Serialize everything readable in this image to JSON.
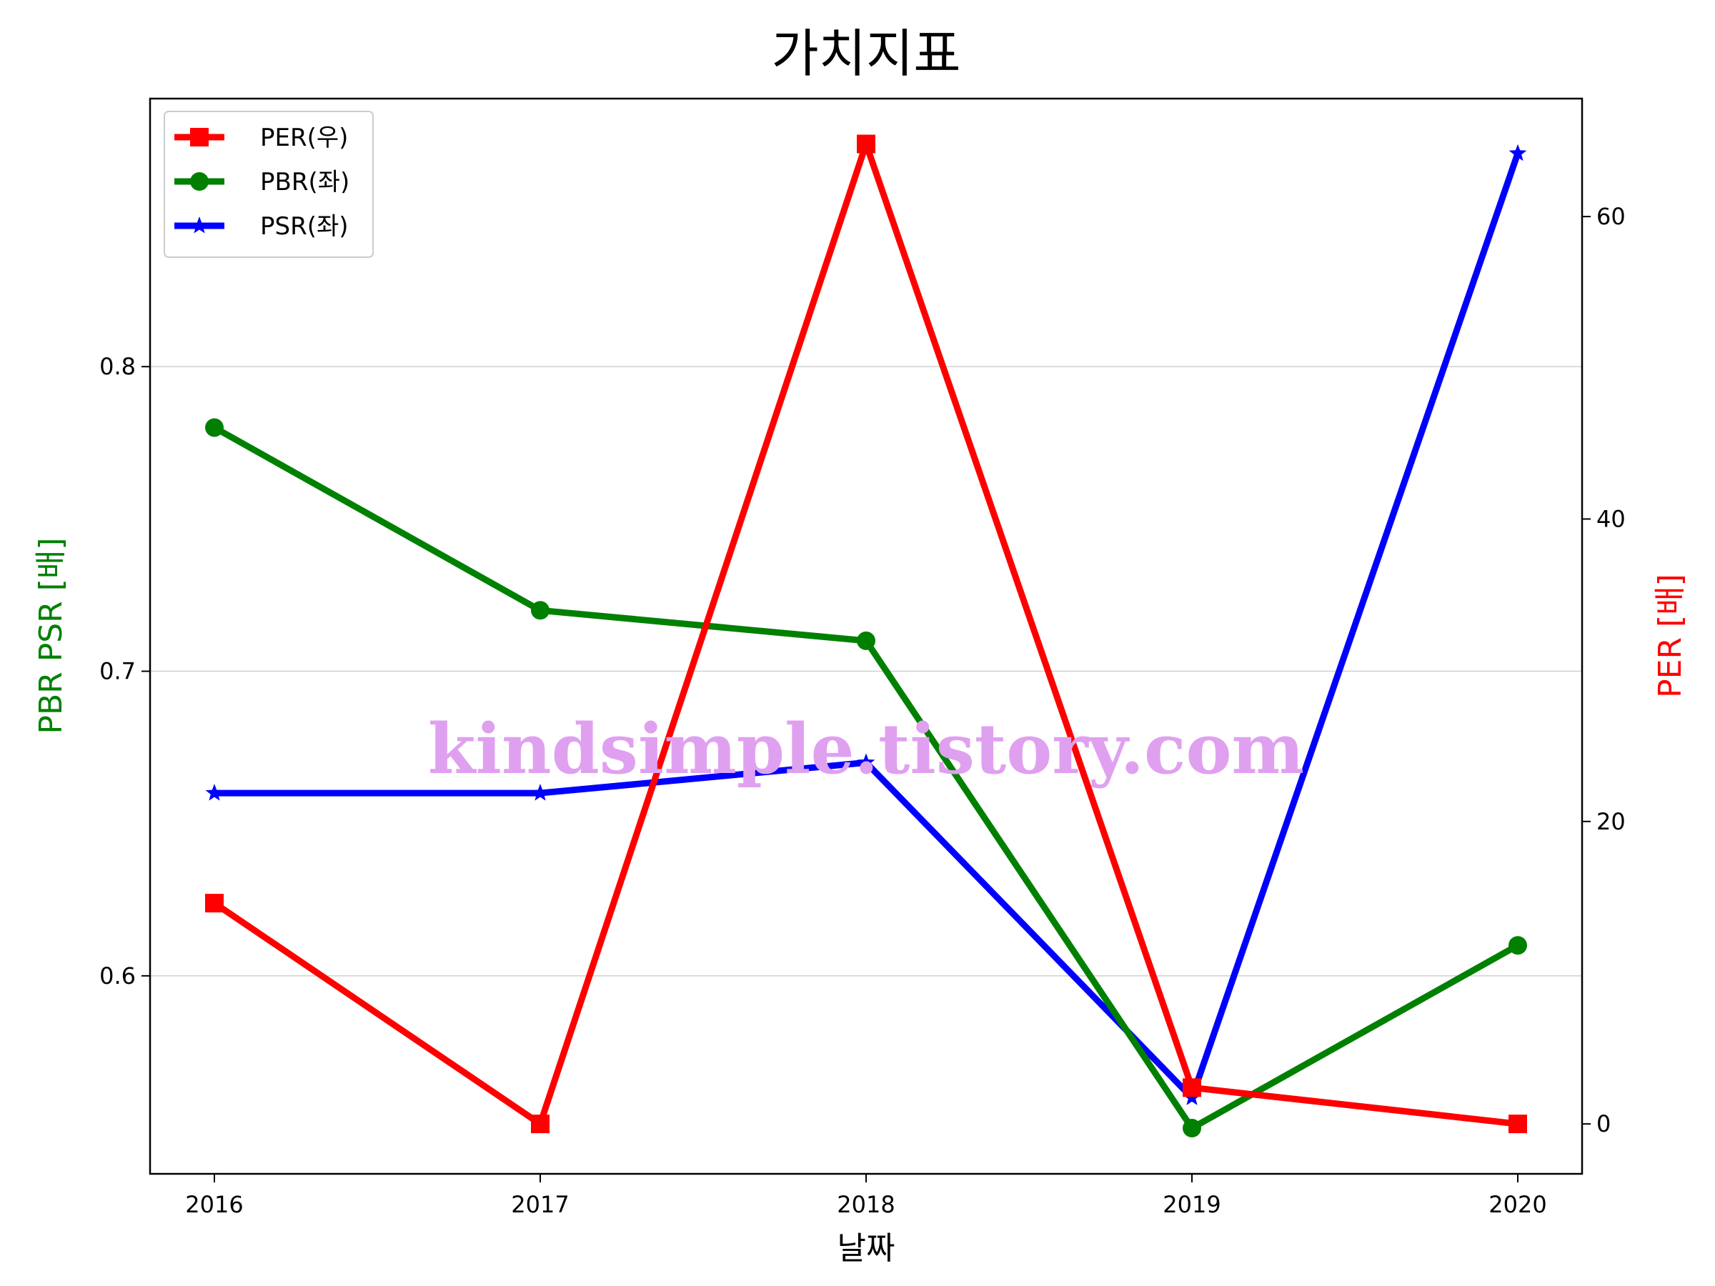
{
  "chart_data": {
    "type": "line",
    "title": "가치지표",
    "xlabel": "날짜",
    "ylabel_left": "PBR PSR [배]",
    "ylabel_right": "PER [배]",
    "categories": [
      "2016",
      "2017",
      "2018",
      "2019",
      "2020"
    ],
    "left_axis": {
      "ylim": [
        0.535,
        0.888
      ],
      "ticks": [
        0.6,
        0.7,
        0.8
      ],
      "tick_labels": [
        "0.6",
        "0.7",
        "0.8"
      ]
    },
    "right_axis": {
      "ylim": [
        -3.3,
        67.8
      ],
      "ticks": [
        0,
        20,
        40,
        60
      ],
      "tick_labels": [
        "0",
        "20",
        "40",
        "60"
      ]
    },
    "grid": "horizontal",
    "legend_position": "top-left",
    "series": [
      {
        "name": "PER(우)",
        "axis": "right",
        "color": "#ff0000",
        "marker": "square",
        "values": [
          14.6,
          0.0,
          64.8,
          2.4,
          0.0
        ]
      },
      {
        "name": "PBR(좌)",
        "axis": "left",
        "color": "#008000",
        "marker": "circle",
        "values": [
          0.78,
          0.72,
          0.71,
          0.55,
          0.61
        ]
      },
      {
        "name": "PSR(좌)",
        "axis": "left",
        "color": "#0000ff",
        "marker": "star",
        "values": [
          0.66,
          0.66,
          0.67,
          0.56,
          0.87
        ]
      }
    ],
    "label_colors": {
      "left": "#008000",
      "right": "#ff0000"
    }
  },
  "watermark": {
    "text": "kindsimple.tistory.com",
    "color": "#e0a0f0"
  }
}
